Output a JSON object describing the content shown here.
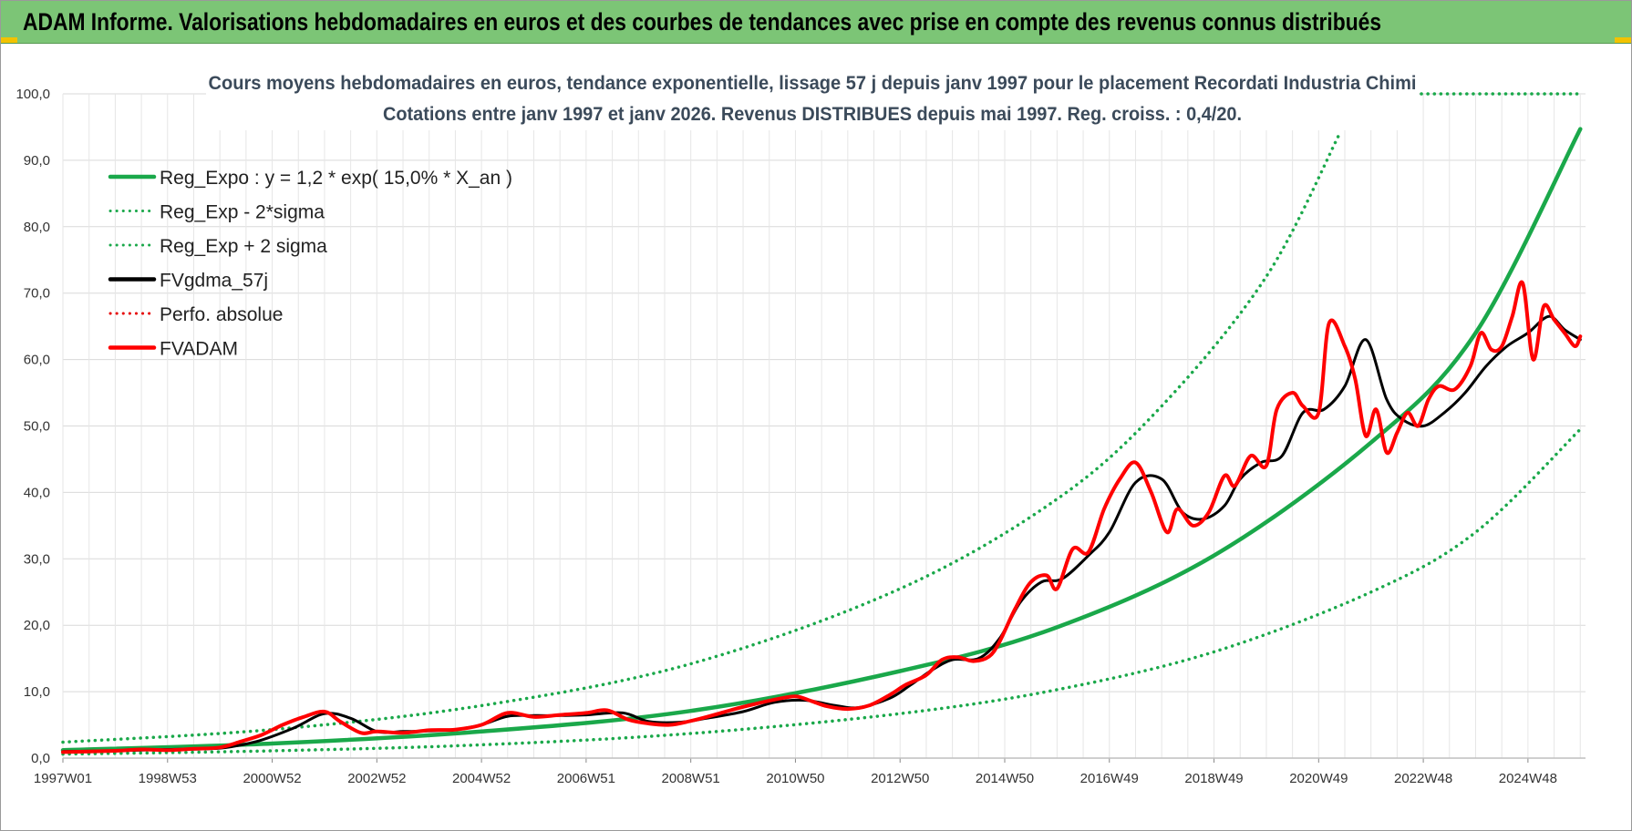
{
  "header": {
    "title": "ADAM Informe. Valorisations hebdomadaires en euros et des courbes de tendances avec prise en compte des revenus connus distribués"
  },
  "chart_data": {
    "type": "line",
    "title_line1": "Cours moyens hebdomadaires en euros, tendance exponentielle, lissage 57 j depuis janv 1997 pour le placement Recordati Industria Chimi",
    "title_line2": "Cotations entre janv 1997 et janv 2026. Revenus DISTRIBUES depuis mai 1997. Reg. croiss. : 0,4/20.",
    "ylim": [
      0,
      100
    ],
    "xlim": [
      1997.0,
      2026.1
    ],
    "y_ticks": [
      "0,0",
      "10,0",
      "20,0",
      "30,0",
      "40,0",
      "50,0",
      "60,0",
      "70,0",
      "80,0",
      "90,0",
      "100,0"
    ],
    "x_ticks": [
      {
        "label": "1997W01",
        "x": 1997.0
      },
      {
        "label": "1998W53",
        "x": 1999.0
      },
      {
        "label": "2000W52",
        "x": 2001.0
      },
      {
        "label": "2002W52",
        "x": 2003.0
      },
      {
        "label": "2004W52",
        "x": 2005.0
      },
      {
        "label": "2006W51",
        "x": 2007.0
      },
      {
        "label": "2008W51",
        "x": 2009.0
      },
      {
        "label": "2010W50",
        "x": 2011.0
      },
      {
        "label": "2012W50",
        "x": 2013.0
      },
      {
        "label": "2014W50",
        "x": 2015.0
      },
      {
        "label": "2016W49",
        "x": 2017.0
      },
      {
        "label": "2018W49",
        "x": 2019.0
      },
      {
        "label": "2020W49",
        "x": 2021.0
      },
      {
        "label": "2022W48",
        "x": 2023.0
      },
      {
        "label": "2024W48",
        "x": 2025.0
      }
    ],
    "grid": true,
    "legend_position": "top-left",
    "series": [
      {
        "name": "Reg_Expo : y = 1,2 * exp( 15,0% *  X_an )",
        "color": "#1aa84a",
        "style": "solid",
        "width": 4.5,
        "x": [
          1997.0,
          2001.0,
          2005.0,
          2009.0,
          2013.0,
          2016.0,
          2019.0,
          2022.0,
          2024.0,
          2026.0
        ],
        "y": [
          1.2,
          2.2,
          4.0,
          7.1,
          13.1,
          19.7,
          30.5,
          47.5,
          64.0,
          94.7
        ]
      },
      {
        "name": "Reg_Exp - 2*sigma",
        "color": "#1aa84a",
        "style": "dotted",
        "width": 3.5,
        "x": [
          1997.0,
          2001.0,
          2005.0,
          2009.0,
          2013.0,
          2016.0,
          2019.0,
          2022.0,
          2024.0,
          2026.0
        ],
        "y": [
          0.6,
          1.1,
          2.0,
          3.7,
          6.7,
          10.3,
          16.0,
          25.0,
          34.0,
          49.5
        ]
      },
      {
        "name": "Reg_Exp + 2 sigma",
        "color": "#1aa84a",
        "style": "dotted",
        "width": 3.5,
        "x": [
          1997.0,
          2001.0,
          2005.0,
          2009.0,
          2013.0,
          2016.0,
          2018.0,
          2020.0,
          2021.4,
          2022.1,
          2026.0
        ],
        "y": [
          2.4,
          4.3,
          7.9,
          14.2,
          25.5,
          39.0,
          53.0,
          72.5,
          94.0,
          100.0,
          100.0
        ],
        "segment_break_x": 2021.4
      },
      {
        "name": "FVgdma_57j",
        "color": "#000000",
        "style": "solid",
        "width": 3,
        "x": [
          1997.0,
          1998.0,
          1999.0,
          2000.0,
          2000.7,
          2001.4,
          2002.0,
          2002.5,
          2003.0,
          2003.5,
          2004.0,
          2004.5,
          2005.0,
          2005.5,
          2006.0,
          2006.5,
          2007.0,
          2007.7,
          2008.2,
          2008.8,
          2009.3,
          2010.0,
          2010.6,
          2011.2,
          2011.7,
          2012.2,
          2012.8,
          2013.2,
          2013.6,
          2014.0,
          2014.5,
          2014.9,
          2015.3,
          2015.7,
          2016.1,
          2016.6,
          2017.0,
          2017.5,
          2018.0,
          2018.4,
          2018.8,
          2019.2,
          2019.5,
          2019.9,
          2020.3,
          2020.7,
          2021.1,
          2021.5,
          2021.9,
          2022.3,
          2022.6,
          2023.0,
          2023.4,
          2023.8,
          2024.2,
          2024.6,
          2025.0,
          2025.4,
          2025.7,
          2026.0
        ],
        "y": [
          1.0,
          1.1,
          1.3,
          1.5,
          2.5,
          4.5,
          6.7,
          6.0,
          4.0,
          4.0,
          4.1,
          4.3,
          5.0,
          6.3,
          6.4,
          6.4,
          6.5,
          6.8,
          5.5,
          5.4,
          6.0,
          7.0,
          8.4,
          8.7,
          8.0,
          7.6,
          9.0,
          11.0,
          13.2,
          14.8,
          15.0,
          18.0,
          23.5,
          26.5,
          27.0,
          30.5,
          34.0,
          41.5,
          42.0,
          37.0,
          36.0,
          38.0,
          42.0,
          44.5,
          45.5,
          52.0,
          52.5,
          56.0,
          63.0,
          54.0,
          51.0,
          50.0,
          52.0,
          55.0,
          59.0,
          62.0,
          64.0,
          66.5,
          64.5,
          63.0
        ]
      },
      {
        "name": "Perfo. absolue",
        "color": "#e60000",
        "style": "dotted",
        "width": 2.5,
        "x": [],
        "y": []
      },
      {
        "name": "FVADAM",
        "color": "#ff0000",
        "style": "solid",
        "width": 4,
        "x": [
          1997.0,
          1997.5,
          1998.0,
          1998.5,
          1999.0,
          1999.5,
          2000.0,
          2000.4,
          2000.8,
          2001.2,
          2001.6,
          2002.0,
          2002.3,
          2002.7,
          2003.0,
          2003.5,
          2004.0,
          2004.5,
          2005.0,
          2005.5,
          2006.0,
          2006.5,
          2007.0,
          2007.4,
          2007.8,
          2008.2,
          2008.6,
          2009.0,
          2009.4,
          2009.8,
          2010.2,
          2010.6,
          2011.0,
          2011.3,
          2011.6,
          2012.0,
          2012.4,
          2012.8,
          2013.1,
          2013.5,
          2013.8,
          2014.1,
          2014.4,
          2014.7,
          2014.9,
          2015.2,
          2015.5,
          2015.8,
          2016.0,
          2016.3,
          2016.6,
          2016.9,
          2017.2,
          2017.5,
          2017.8,
          2018.1,
          2018.3,
          2018.6,
          2018.9,
          2019.2,
          2019.4,
          2019.7,
          2020.0,
          2020.2,
          2020.5,
          2020.7,
          2021.0,
          2021.2,
          2021.5,
          2021.7,
          2021.9,
          2022.1,
          2022.3,
          2022.5,
          2022.7,
          2022.9,
          2023.1,
          2023.3,
          2023.6,
          2023.9,
          2024.1,
          2024.3,
          2024.5,
          2024.7,
          2024.9,
          2025.1,
          2025.3,
          2025.5,
          2025.7,
          2025.9,
          2026.0
        ],
        "y": [
          0.9,
          1.0,
          1.1,
          1.3,
          1.2,
          1.4,
          1.6,
          2.5,
          3.5,
          5.0,
          6.2,
          7.0,
          5.5,
          3.8,
          4.0,
          3.8,
          4.2,
          4.3,
          5.0,
          6.8,
          6.2,
          6.5,
          6.8,
          7.2,
          5.8,
          5.2,
          5.0,
          5.6,
          6.4,
          7.3,
          8.1,
          8.8,
          9.3,
          8.6,
          7.8,
          7.4,
          7.9,
          9.5,
          11.0,
          12.5,
          14.8,
          15.2,
          14.6,
          15.3,
          17.5,
          22.5,
          26.5,
          27.5,
          25.5,
          31.5,
          31.0,
          37.5,
          42.0,
          44.5,
          40.0,
          34.0,
          37.5,
          35.0,
          37.0,
          42.5,
          41.0,
          45.5,
          44.0,
          52.5,
          55.0,
          53.0,
          52.0,
          65.5,
          62.0,
          57.0,
          48.5,
          52.5,
          46.0,
          49.0,
          52.0,
          50.0,
          54.0,
          56.0,
          55.5,
          59.0,
          64.0,
          61.5,
          62.0,
          66.5,
          71.5,
          60.0,
          68.0,
          66.0,
          64.0,
          62.0,
          63.5
        ]
      }
    ]
  }
}
